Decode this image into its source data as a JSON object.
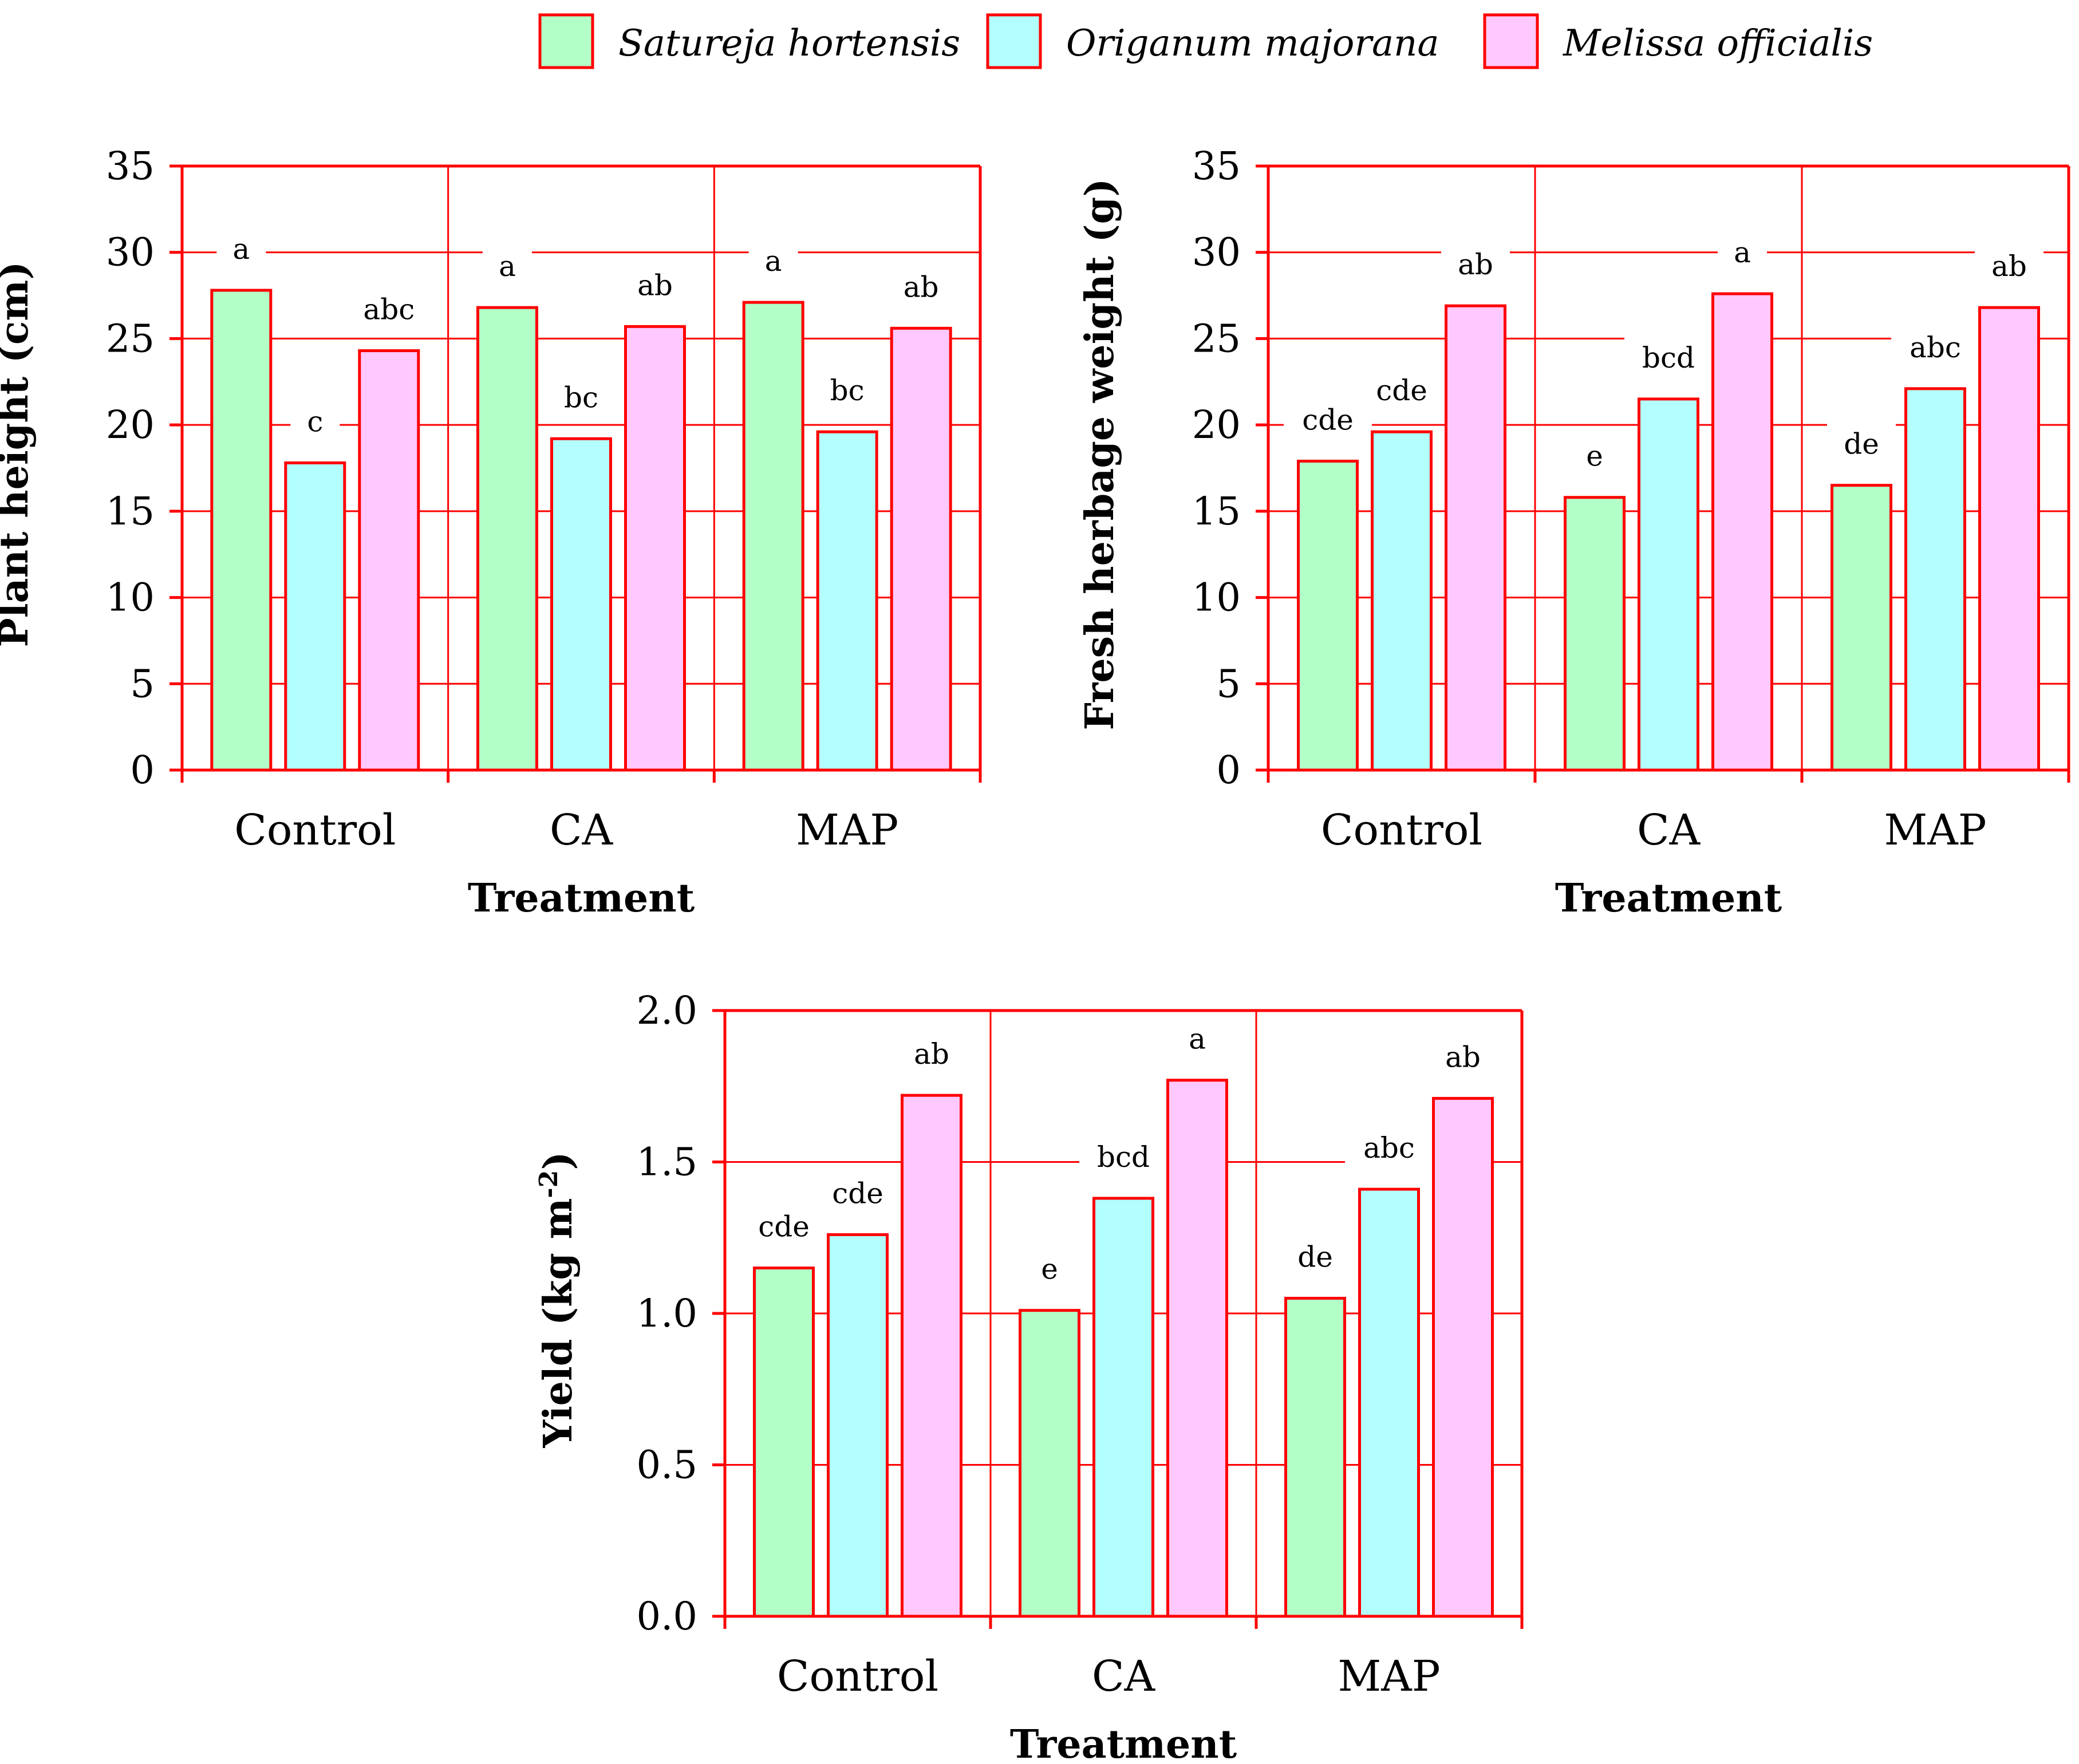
{
  "colors": {
    "frame": "#ff0000",
    "series": [
      "#b3ffc8",
      "#b3ffff",
      "#ffc8ff"
    ]
  },
  "legend": {
    "items": [
      "Satureja hortensis",
      "Origanum majorana",
      "Melissa officialis"
    ]
  },
  "chart_data": [
    {
      "type": "bar",
      "id": "plant-height",
      "categories": [
        "Control",
        "CA",
        "MAP"
      ],
      "series": [
        {
          "name": "Satureja hortensis",
          "values": [
            27.8,
            26.8,
            27.1
          ],
          "letters": [
            "a",
            "a",
            "a"
          ]
        },
        {
          "name": "Origanum majorana",
          "values": [
            17.8,
            19.2,
            19.6
          ],
          "letters": [
            "c",
            "bc",
            "bc"
          ]
        },
        {
          "name": "Melissa officialis",
          "values": [
            24.3,
            25.7,
            25.6
          ],
          "letters": [
            "abc",
            "ab",
            "ab"
          ]
        }
      ],
      "xlabel": "Treatment",
      "ylabel": "Plant height (cm)",
      "ylim": [
        0,
        35
      ],
      "yticks": [
        "0",
        "5",
        "10",
        "15",
        "20",
        "25",
        "30",
        "35"
      ],
      "grid": true
    },
    {
      "type": "bar",
      "id": "fresh-herbage-weight",
      "categories": [
        "Control",
        "CA",
        "MAP"
      ],
      "series": [
        {
          "name": "Satureja hortensis",
          "values": [
            17.9,
            15.8,
            16.5
          ],
          "letters": [
            "cde",
            "e",
            "de"
          ]
        },
        {
          "name": "Origanum majorana",
          "values": [
            19.6,
            21.5,
            22.1
          ],
          "letters": [
            "cde",
            "bcd",
            "abc"
          ]
        },
        {
          "name": "Melissa officialis",
          "values": [
            26.9,
            27.6,
            26.8
          ],
          "letters": [
            "ab",
            "a",
            "ab"
          ]
        }
      ],
      "xlabel": "Treatment",
      "ylabel": "Fresh herbage weight (g)",
      "ylim": [
        0,
        35
      ],
      "yticks": [
        "0",
        "5",
        "10",
        "15",
        "20",
        "25",
        "30",
        "35"
      ],
      "grid": true
    },
    {
      "type": "bar",
      "id": "yield",
      "categories": [
        "Control",
        "CA",
        "MAP"
      ],
      "series": [
        {
          "name": "Satureja hortensis",
          "values": [
            1.15,
            1.01,
            1.05
          ],
          "letters": [
            "cde",
            "e",
            "de"
          ]
        },
        {
          "name": "Origanum majorana",
          "values": [
            1.26,
            1.38,
            1.41
          ],
          "letters": [
            "cde",
            "bcd",
            "abc"
          ]
        },
        {
          "name": "Melissa officialis",
          "values": [
            1.72,
            1.77,
            1.71
          ],
          "letters": [
            "ab",
            "a",
            "ab"
          ]
        }
      ],
      "xlabel": "Treatment",
      "ylabel": "Yield (kg m",
      "ylabel_sup": "-2",
      "ylabel_end": ")",
      "ylim": [
        0,
        2.0
      ],
      "yticks": [
        "0.0",
        "0.5",
        "1.0",
        "1.5",
        "2.0"
      ],
      "grid": true
    }
  ]
}
